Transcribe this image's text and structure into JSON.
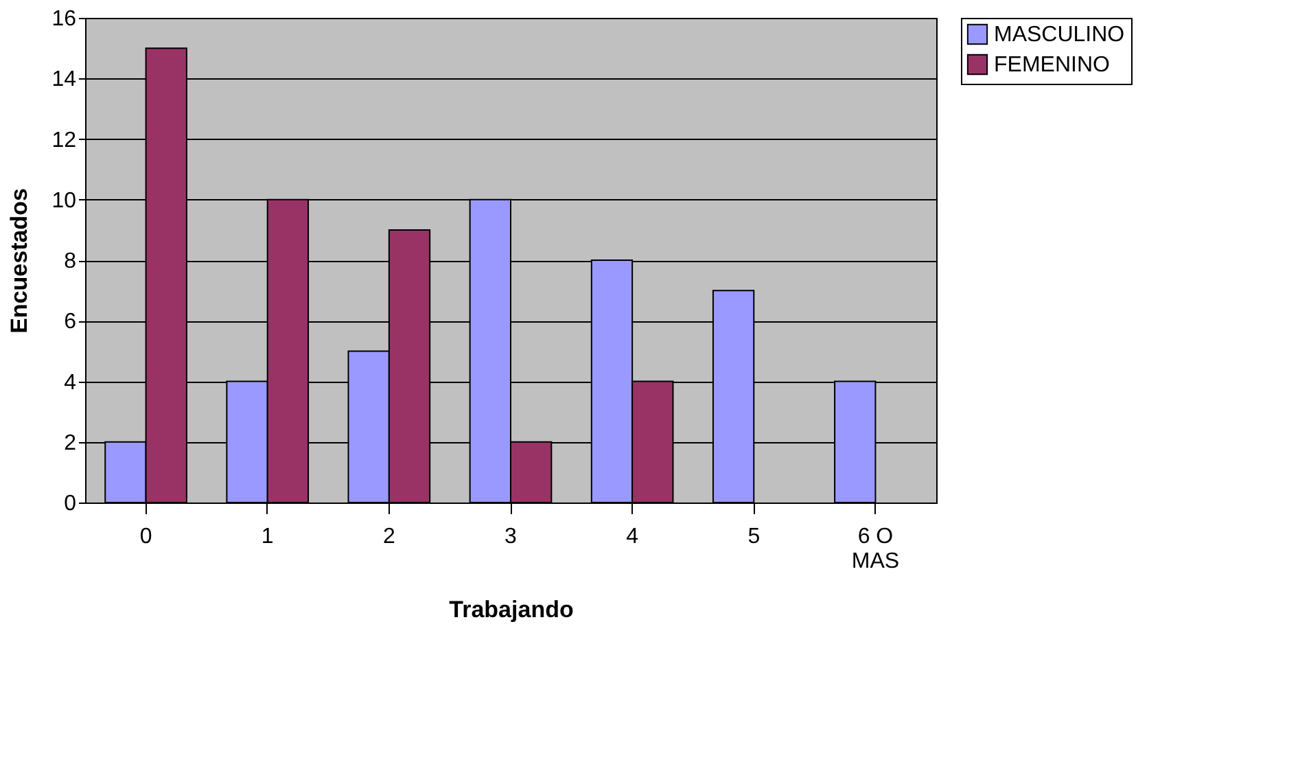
{
  "chart_data": {
    "type": "bar",
    "xlabel": "Trabajando",
    "ylabel": "Encuestados",
    "categories": [
      "0",
      "1",
      "2",
      "3",
      "4",
      "5",
      "6 O MAS"
    ],
    "series": [
      {
        "name": "MASCULINO",
        "color": "#9999ff",
        "values": [
          2,
          4,
          5,
          10,
          8,
          7,
          4
        ]
      },
      {
        "name": "FEMENINO",
        "color": "#993366",
        "values": [
          15,
          10,
          9,
          2,
          4,
          null,
          null
        ]
      }
    ],
    "ylim": [
      0,
      16
    ],
    "yticks": [
      0,
      2,
      4,
      6,
      8,
      10,
      12,
      14,
      16
    ],
    "grid": "y",
    "legend": "right"
  }
}
